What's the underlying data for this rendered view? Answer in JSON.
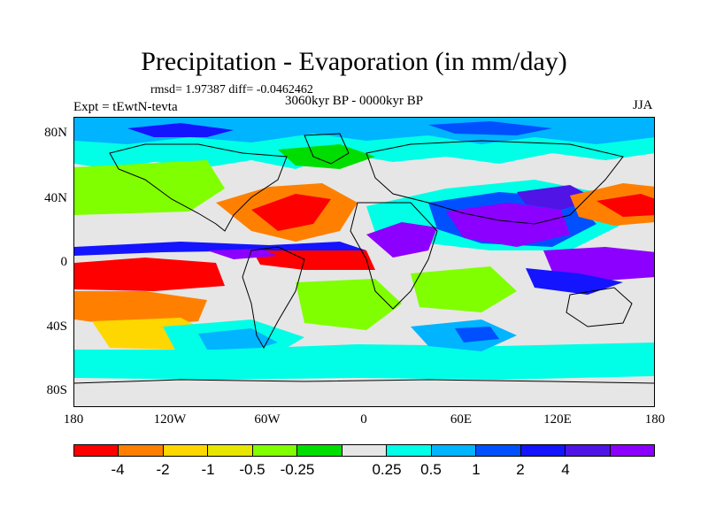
{
  "header": {
    "title": "Precipitation - Evaporation (in mm/day)",
    "stats": "rmsd= 1.97387 diff= -0.0462462",
    "period": "3060kyr BP - 0000kyr BP",
    "experiment": "Expt = tEwtN-tevta",
    "season": "JJA"
  },
  "axes": {
    "y_ticks": [
      "80N",
      "40N",
      "0",
      "40S",
      "80S"
    ],
    "x_ticks": [
      "180",
      "120W",
      "60W",
      "0",
      "60E",
      "120E",
      "180"
    ]
  },
  "colorbar": {
    "colors": [
      "#ff0000",
      "#ff8000",
      "#ffd700",
      "#e6e600",
      "#80ff00",
      "#00dd00",
      "#e6e6e6",
      "#00ffe6",
      "#00b4ff",
      "#0050ff",
      "#1414ff",
      "#5014e6",
      "#8c00ff"
    ],
    "labels": [
      "-4",
      "-2",
      "-1",
      "-0.5",
      "-0.25",
      "0.25",
      "0.5",
      "1",
      "2",
      "4"
    ]
  },
  "map_palette": {
    "dry_strong": "#ff0000",
    "dry": "#ff8000",
    "dry_mild": "#ffd700",
    "dry_weak": "#e6e600",
    "neutral_dry": "#80ff00",
    "neutral_green": "#00dd00",
    "neutral": "#e6e6e6",
    "wet_weak": "#00ffe6",
    "wet_mild": "#00b4ff",
    "wet": "#0050ff",
    "wet_strong": "#1414ff",
    "very_wet": "#5014e6",
    "extreme_wet": "#8c00ff"
  }
}
